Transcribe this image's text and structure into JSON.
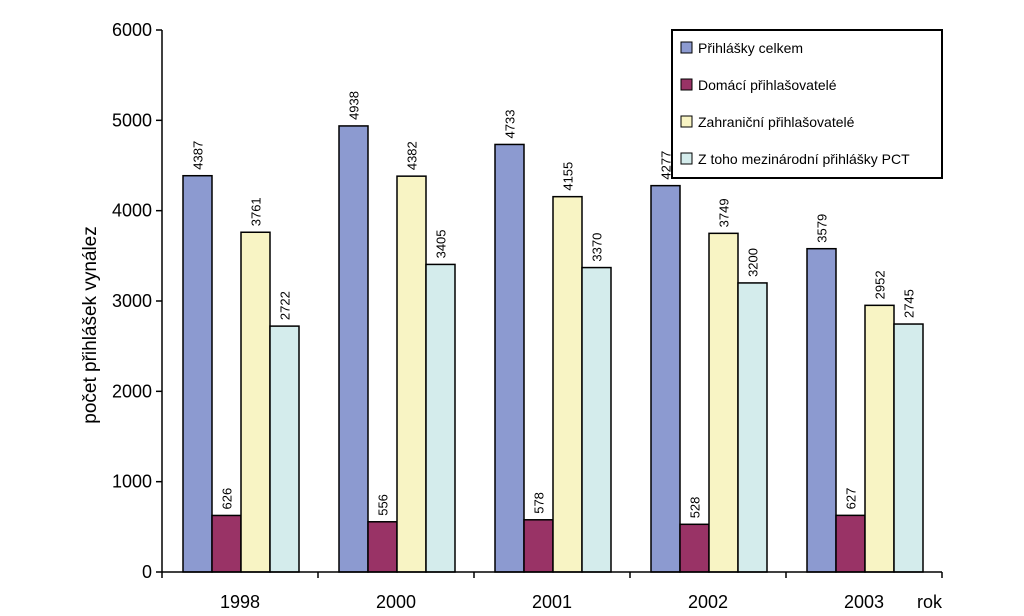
{
  "chart_data": {
    "type": "bar",
    "title": "",
    "xlabel": "rok",
    "ylabel": "počet přihlášek vynález",
    "ylim": [
      0,
      6000
    ],
    "yticks": [
      0,
      1000,
      2000,
      3000,
      4000,
      5000,
      6000
    ],
    "categories": [
      "1998",
      "2000",
      "2001",
      "2002",
      "2003"
    ],
    "grid": false,
    "legend_position": "top-right",
    "series": [
      {
        "name": "Přihlášky celkem",
        "color": "#8c9ad0",
        "values": [
          4387,
          4938,
          4733,
          4277,
          3579
        ]
      },
      {
        "name": "Domácí přihlašovatelé",
        "color": "#993366",
        "values": [
          626,
          556,
          578,
          528,
          627
        ]
      },
      {
        "name": "Zahraniční přihlašovatelé",
        "color": "#f8f4c4",
        "values": [
          3761,
          4382,
          4155,
          3749,
          2952
        ]
      },
      {
        "name": "Z toho mezinárodní přihlášky PCT",
        "color": "#d4ecec",
        "values": [
          2722,
          3405,
          3370,
          3200,
          2745
        ]
      }
    ]
  }
}
